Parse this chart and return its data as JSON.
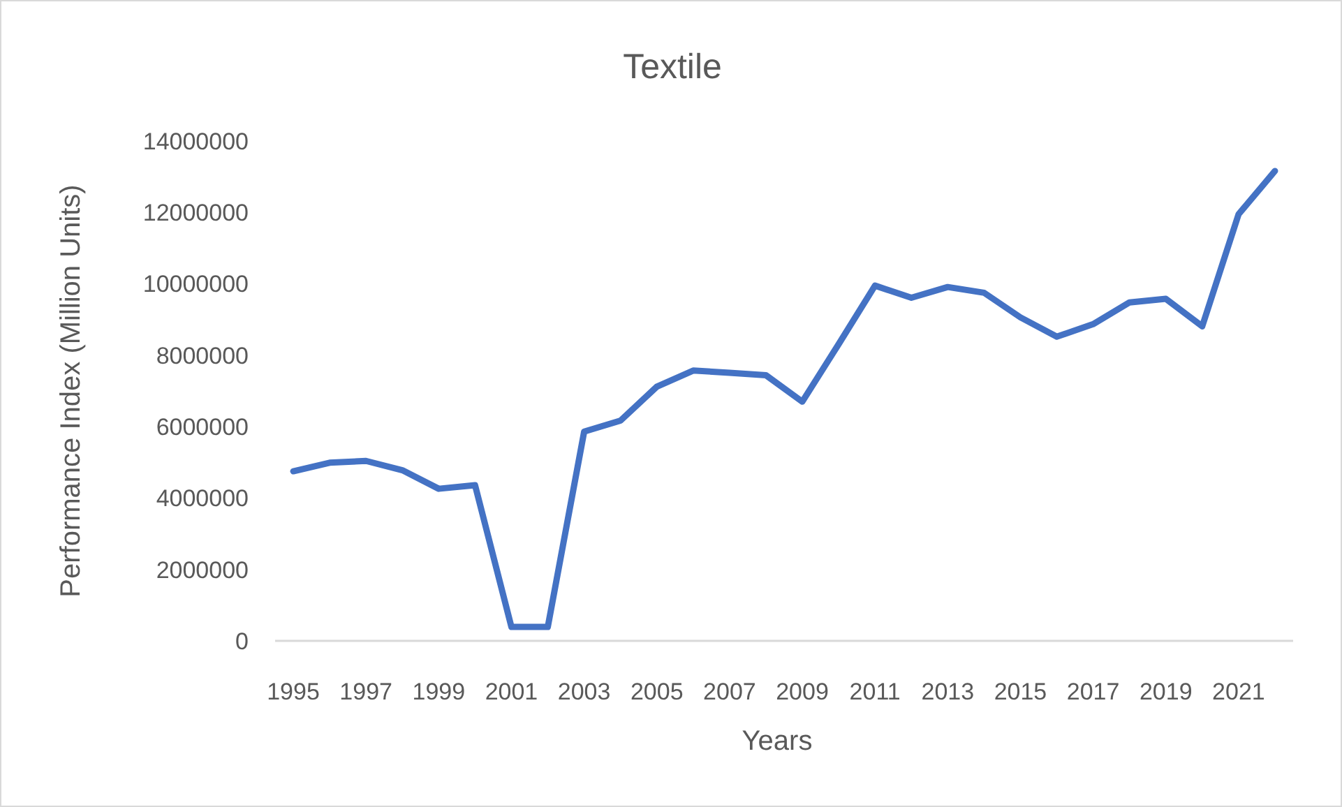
{
  "chart_data": {
    "type": "line",
    "title": "Textile",
    "xlabel": "Years",
    "ylabel": "Performance Index (Million Units)",
    "categories": [
      "1995",
      null,
      "1997",
      null,
      "1999",
      null,
      "2001",
      null,
      "2003",
      null,
      "2005",
      null,
      "2007",
      null,
      "2009",
      null,
      "2011",
      null,
      "2013",
      null,
      "2015",
      null,
      "2017",
      null,
      "2019",
      null,
      "2021",
      null
    ],
    "series": [
      {
        "color": "#4472c4",
        "values": [
          4750000,
          4990000,
          5040000,
          4780000,
          4260000,
          4360000,
          390000,
          390000,
          5860000,
          6170000,
          7120000,
          7570000,
          7510000,
          7440000,
          6700000,
          8310000,
          9950000,
          9610000,
          9910000,
          9750000,
          9060000,
          8520000,
          8870000,
          9480000,
          9580000,
          8810000,
          11950000,
          13160000
        ]
      }
    ],
    "ylim": [
      0,
      14000000
    ],
    "yticks": [
      0,
      2000000,
      4000000,
      6000000,
      8000000,
      10000000,
      12000000,
      14000000
    ],
    "grid": false,
    "marker": "none",
    "line_style": "solid"
  }
}
